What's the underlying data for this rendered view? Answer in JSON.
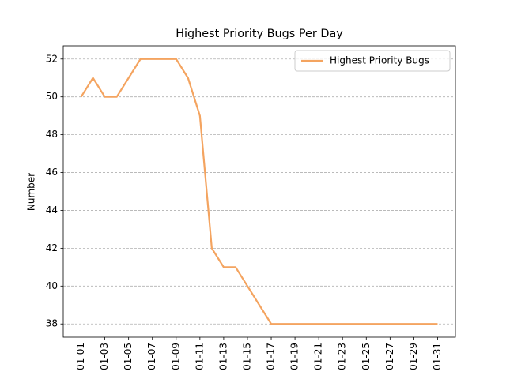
{
  "chart_data": {
    "type": "line",
    "title": "Highest Priority Bugs Per Day",
    "y_label": "Number",
    "categories": [
      "01-01",
      null,
      "01-03",
      null,
      "01-05",
      null,
      "01-07",
      null,
      "01-09",
      null,
      "01-11",
      null,
      "01-13",
      null,
      "01-15",
      null,
      "01-17",
      null,
      "01-19",
      null,
      "01-21",
      null,
      "01-23",
      null,
      "01-25",
      null,
      "01-27",
      null,
      "01-29",
      null,
      "01-31"
    ],
    "series": [
      {
        "name": "Highest Priority Bugs",
        "color": "#f4a460",
        "values": [
          50,
          51,
          50,
          50,
          51,
          52,
          52,
          52,
          52,
          51,
          49,
          42,
          41,
          41,
          40,
          39,
          38,
          38,
          38,
          38,
          38,
          38,
          38,
          38,
          38,
          38,
          38,
          38,
          38,
          38,
          38
        ]
      }
    ],
    "ylim": [
      37.3,
      52.7
    ],
    "yticks": [
      38,
      40,
      42,
      44,
      46,
      48,
      50,
      52
    ],
    "grid": true,
    "legend": "upper right"
  }
}
